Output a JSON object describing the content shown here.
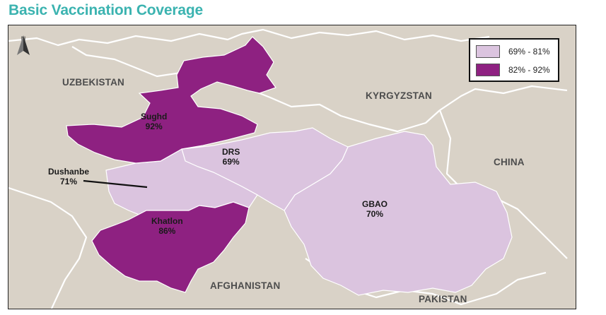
{
  "title": "Basic Vaccination Coverage",
  "colors": {
    "background": "#d9d2c7",
    "low_range": "#dbc4df",
    "high_range": "#8e2181",
    "title": "#3bb3b0",
    "border": "#ffffff"
  },
  "countries": {
    "uzbekistan": "UZBEKISTAN",
    "kyrgyzstan": "KYRGYZSTAN",
    "china": "CHINA",
    "afghanistan": "AFGHANISTAN",
    "pakistan": "PAKISTAN"
  },
  "regions": {
    "sughd": {
      "name": "Sughd",
      "value": "92%"
    },
    "drs": {
      "name": "DRS",
      "value": "69%"
    },
    "dushanbe": {
      "name": "Dushanbe",
      "value": "71%"
    },
    "khatlon": {
      "name": "Khatlon",
      "value": "86%"
    },
    "gbao": {
      "name": "GBAO",
      "value": "70%"
    }
  },
  "legend": {
    "items": [
      {
        "label": "69% - 81%",
        "color": "#dbc4df"
      },
      {
        "label": "82% - 92%",
        "color": "#8e2181"
      }
    ]
  },
  "north_arrow": {
    "letter": "N",
    "icon": "north-arrow-icon"
  }
}
